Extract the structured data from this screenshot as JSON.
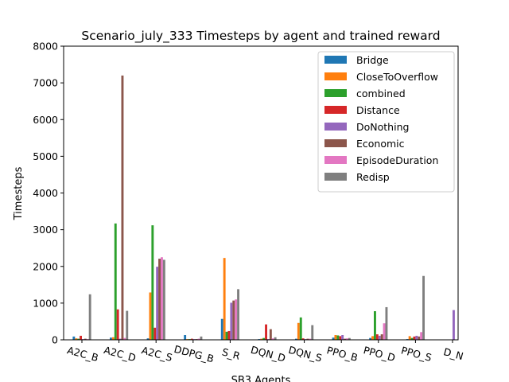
{
  "chart_data": {
    "type": "bar",
    "title": "Scenario_july_333 Timesteps by agent and trained reward",
    "xlabel": "SB3 Agents",
    "ylabel": "Timesteps",
    "ylim": [
      0,
      8000
    ],
    "yticks": [
      0,
      1000,
      2000,
      3000,
      4000,
      5000,
      6000,
      7000,
      8000
    ],
    "grid": false,
    "legend_position": "top-right",
    "categories": [
      "A2C_B",
      "A2C_D",
      "A2C_S",
      "DDPG_B",
      "S_R",
      "DQN_D",
      "DQN_S",
      "PPO_B",
      "PPO_D",
      "PPO_S",
      "D_N"
    ],
    "series": [
      {
        "name": "Bridge",
        "color": "#1f77b4",
        "values": [
          90,
          60,
          40,
          130,
          570,
          20,
          30,
          60,
          50,
          20,
          0
        ]
      },
      {
        "name": "CloseToOverflow",
        "color": "#ff7f0e",
        "values": [
          40,
          70,
          1290,
          20,
          2230,
          30,
          460,
          130,
          100,
          100,
          0
        ]
      },
      {
        "name": "combined",
        "color": "#2ca02c",
        "values": [
          30,
          3170,
          3120,
          20,
          220,
          50,
          610,
          120,
          780,
          50,
          0
        ]
      },
      {
        "name": "Distance",
        "color": "#d62728",
        "values": [
          110,
          830,
          330,
          30,
          240,
          420,
          40,
          100,
          150,
          90,
          0
        ]
      },
      {
        "name": "DoNothing",
        "color": "#9467bd",
        "values": [
          20,
          30,
          1990,
          20,
          1010,
          20,
          20,
          130,
          110,
          110,
          810
        ]
      },
      {
        "name": "Economic",
        "color": "#8c564b",
        "values": [
          30,
          7200,
          2210,
          20,
          1070,
          290,
          30,
          30,
          150,
          90,
          0
        ]
      },
      {
        "name": "EpisodeDuration",
        "color": "#e377c2",
        "values": [
          20,
          50,
          2250,
          30,
          1100,
          40,
          30,
          40,
          450,
          210,
          0
        ]
      },
      {
        "name": "Redisp",
        "color": "#7f7f7f",
        "values": [
          1240,
          790,
          2180,
          90,
          1380,
          70,
          400,
          50,
          890,
          1740,
          0
        ]
      }
    ]
  }
}
